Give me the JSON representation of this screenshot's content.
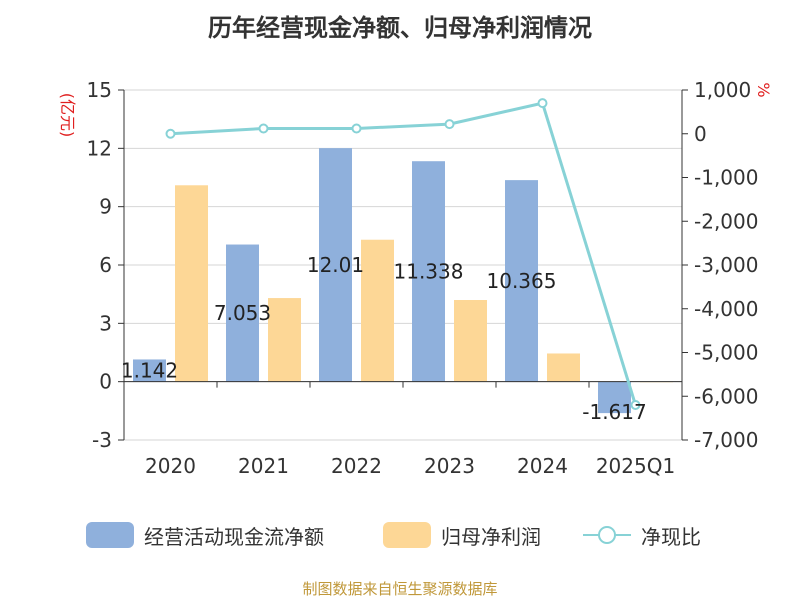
{
  "title": "历年经营现金净额、归母净利润情况",
  "source": "制图数据来自恒生聚源数据库",
  "chart_data": {
    "type": "bar",
    "categories": [
      "2020",
      "2021",
      "2022",
      "2023",
      "2024",
      "2025Q1"
    ],
    "y_left": {
      "label": "(亿元)",
      "ylim": [
        -3,
        15
      ],
      "ticks": [
        -3,
        0,
        3,
        6,
        9,
        12,
        15
      ]
    },
    "y_right": {
      "label": "%",
      "ylim": [
        -7000,
        1000
      ],
      "ticks": [
        1000,
        0,
        -1000,
        -2000,
        -3000,
        -4000,
        -5000,
        -6000,
        -7000
      ],
      "tick_labels": [
        "1,000",
        "0",
        "-1,000",
        "-2,000",
        "-3,000",
        "-4,000",
        "-5,000",
        "-6,000",
        "-7,000"
      ]
    },
    "grid": true,
    "legend_position": "bottom",
    "series": [
      {
        "name": "经营活动现金流净额",
        "type": "bar",
        "axis": "left",
        "color": "#8fb0dc",
        "values": [
          1.142,
          7.053,
          12.01,
          11.338,
          10.365,
          -1.617
        ],
        "data_labels": [
          "1.142",
          "7.053",
          "12.01",
          "11.338",
          "10.365",
          "-1.617"
        ]
      },
      {
        "name": "归母净利润",
        "type": "bar",
        "axis": "left",
        "color": "#fdd796",
        "values": [
          10.1,
          4.3,
          7.3,
          4.2,
          1.45,
          -0.03
        ]
      },
      {
        "name": "净现比",
        "type": "line",
        "axis": "right",
        "color": "#87d2d6",
        "values": [
          0,
          120,
          120,
          220,
          700,
          -6200
        ]
      }
    ]
  }
}
